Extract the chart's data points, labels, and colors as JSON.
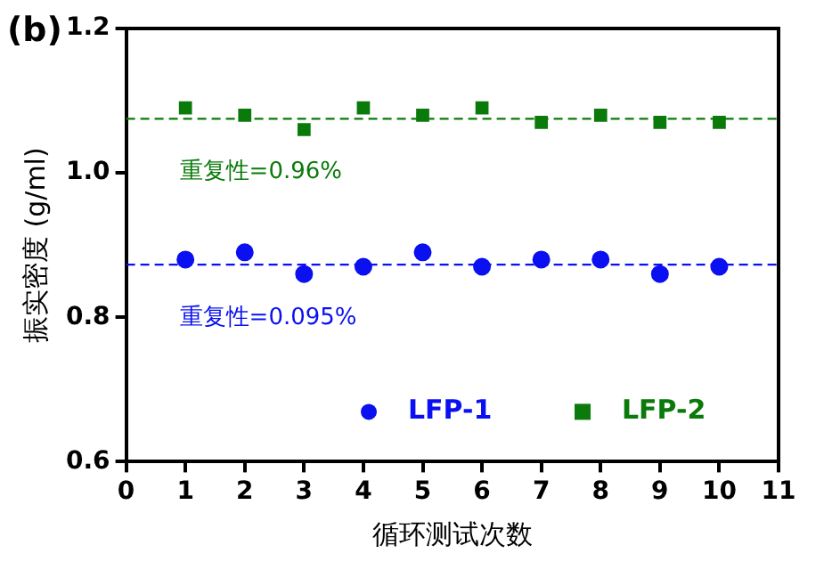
{
  "chart_data": {
    "type": "scatter",
    "xlabel": "循环测试次数",
    "ylabel": "振实密度 (g/ml)",
    "x": [
      1,
      2,
      3,
      4,
      5,
      6,
      7,
      8,
      9,
      10
    ],
    "series": [
      {
        "name": "LFP-1",
        "color": "#0a10f0",
        "marker": "circle",
        "values": [
          0.88,
          0.89,
          0.86,
          0.87,
          0.89,
          0.87,
          0.88,
          0.88,
          0.86,
          0.87
        ]
      },
      {
        "name": "LFP-2",
        "color": "#0a7a0a",
        "marker": "square",
        "values": [
          1.09,
          1.08,
          1.06,
          1.09,
          1.08,
          1.09,
          1.07,
          1.08,
          1.07,
          1.07
        ]
      }
    ],
    "xlim": [
      0,
      11
    ],
    "xticks": [
      0,
      1,
      2,
      3,
      4,
      5,
      6,
      7,
      8,
      9,
      10,
      11
    ],
    "ylim": [
      0.6,
      1.2
    ],
    "yticks": [
      {
        "value": 0.6,
        "label": "0.6"
      },
      {
        "value": 0.8,
        "label": "0.8"
      },
      {
        "value": 1.0,
        "label": "1.0"
      },
      {
        "value": 1.2,
        "label": "1.2"
      }
    ],
    "ref_lines": [
      {
        "axis": "y",
        "value": 1.075,
        "color": "#0a7a0a",
        "line_style": "dashed"
      },
      {
        "axis": "y",
        "value": 0.873,
        "color": "#0a10f0",
        "line_style": "dashed"
      }
    ],
    "annotations": [
      "重复性=0.96%",
      "重复性=0.095%",
      "(b)"
    ],
    "grid": false,
    "legend": "bottom right"
  }
}
